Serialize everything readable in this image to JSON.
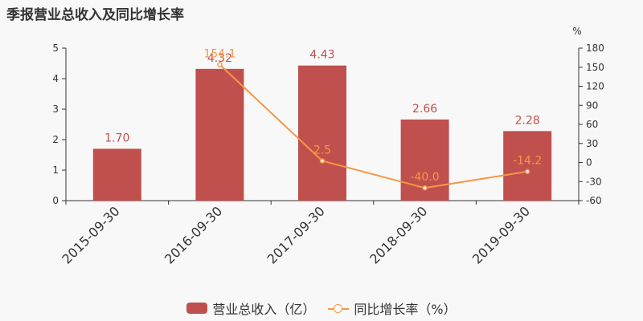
{
  "header": {
    "title": "季报营业总收入及同比增长率"
  },
  "chart_data": {
    "type": "bar",
    "categories": [
      "2015-09-30",
      "2016-09-30",
      "2017-09-30",
      "2018-09-30",
      "2019-09-30"
    ],
    "series": [
      {
        "name": "营业总收入（亿）",
        "type": "bar",
        "axis": "left",
        "values": [
          1.7,
          4.32,
          4.43,
          2.66,
          2.28
        ],
        "labels": [
          "1.70",
          "4.32",
          "4.43",
          "2.66",
          "2.28"
        ]
      },
      {
        "name": "同比增长率（%）",
        "type": "line",
        "axis": "right",
        "values": [
          null,
          154.1,
          2.5,
          -40.0,
          -14.2
        ],
        "labels": [
          "",
          "154.1",
          "2.5",
          "-40.0",
          "-14.2"
        ]
      }
    ],
    "y_left": {
      "range": [
        0,
        5
      ],
      "ticks": [
        "0",
        "1",
        "2",
        "3",
        "4",
        "5"
      ]
    },
    "y_right": {
      "unit": "%",
      "range": [
        -60,
        180
      ],
      "ticks": [
        "-60",
        "-30",
        "0",
        "30",
        "60",
        "90",
        "120",
        "150",
        "180"
      ]
    },
    "grid": false,
    "legend": "bottom-center",
    "colors": {
      "bar": "#c0504d",
      "line": "#f79646"
    }
  }
}
